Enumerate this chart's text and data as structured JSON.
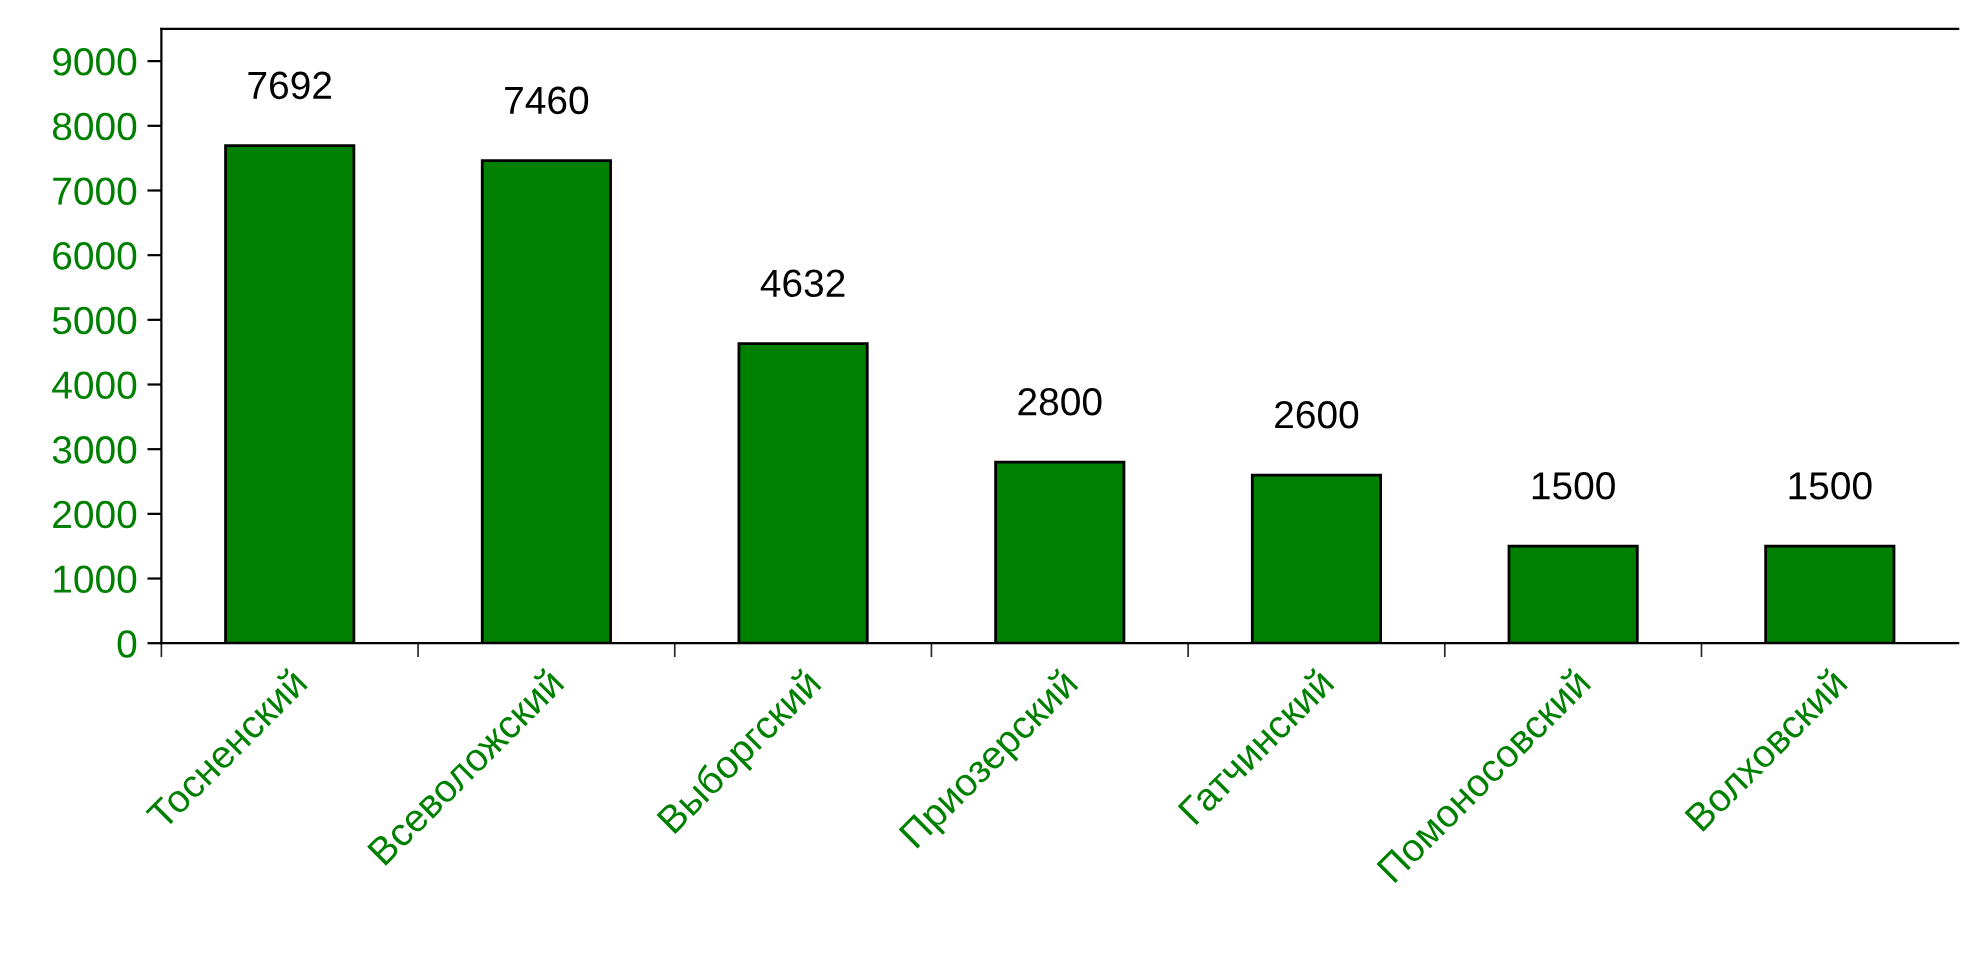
{
  "chart_data": {
    "type": "bar",
    "categories": [
      "Тосненский",
      "Всеволожский",
      "Выборгский",
      "Приозерский",
      "Гатчинский",
      "Помоносовский",
      "Волховский"
    ],
    "values": [
      7692,
      7460,
      4632,
      2800,
      2600,
      1500,
      1500
    ],
    "color": "#008000",
    "ylim": [
      0,
      9500
    ],
    "yticks": [
      0,
      1000,
      2000,
      3000,
      4000,
      5000,
      6000,
      7000,
      8000,
      9000
    ],
    "data_labels": true,
    "grid": false,
    "legend": false
  }
}
